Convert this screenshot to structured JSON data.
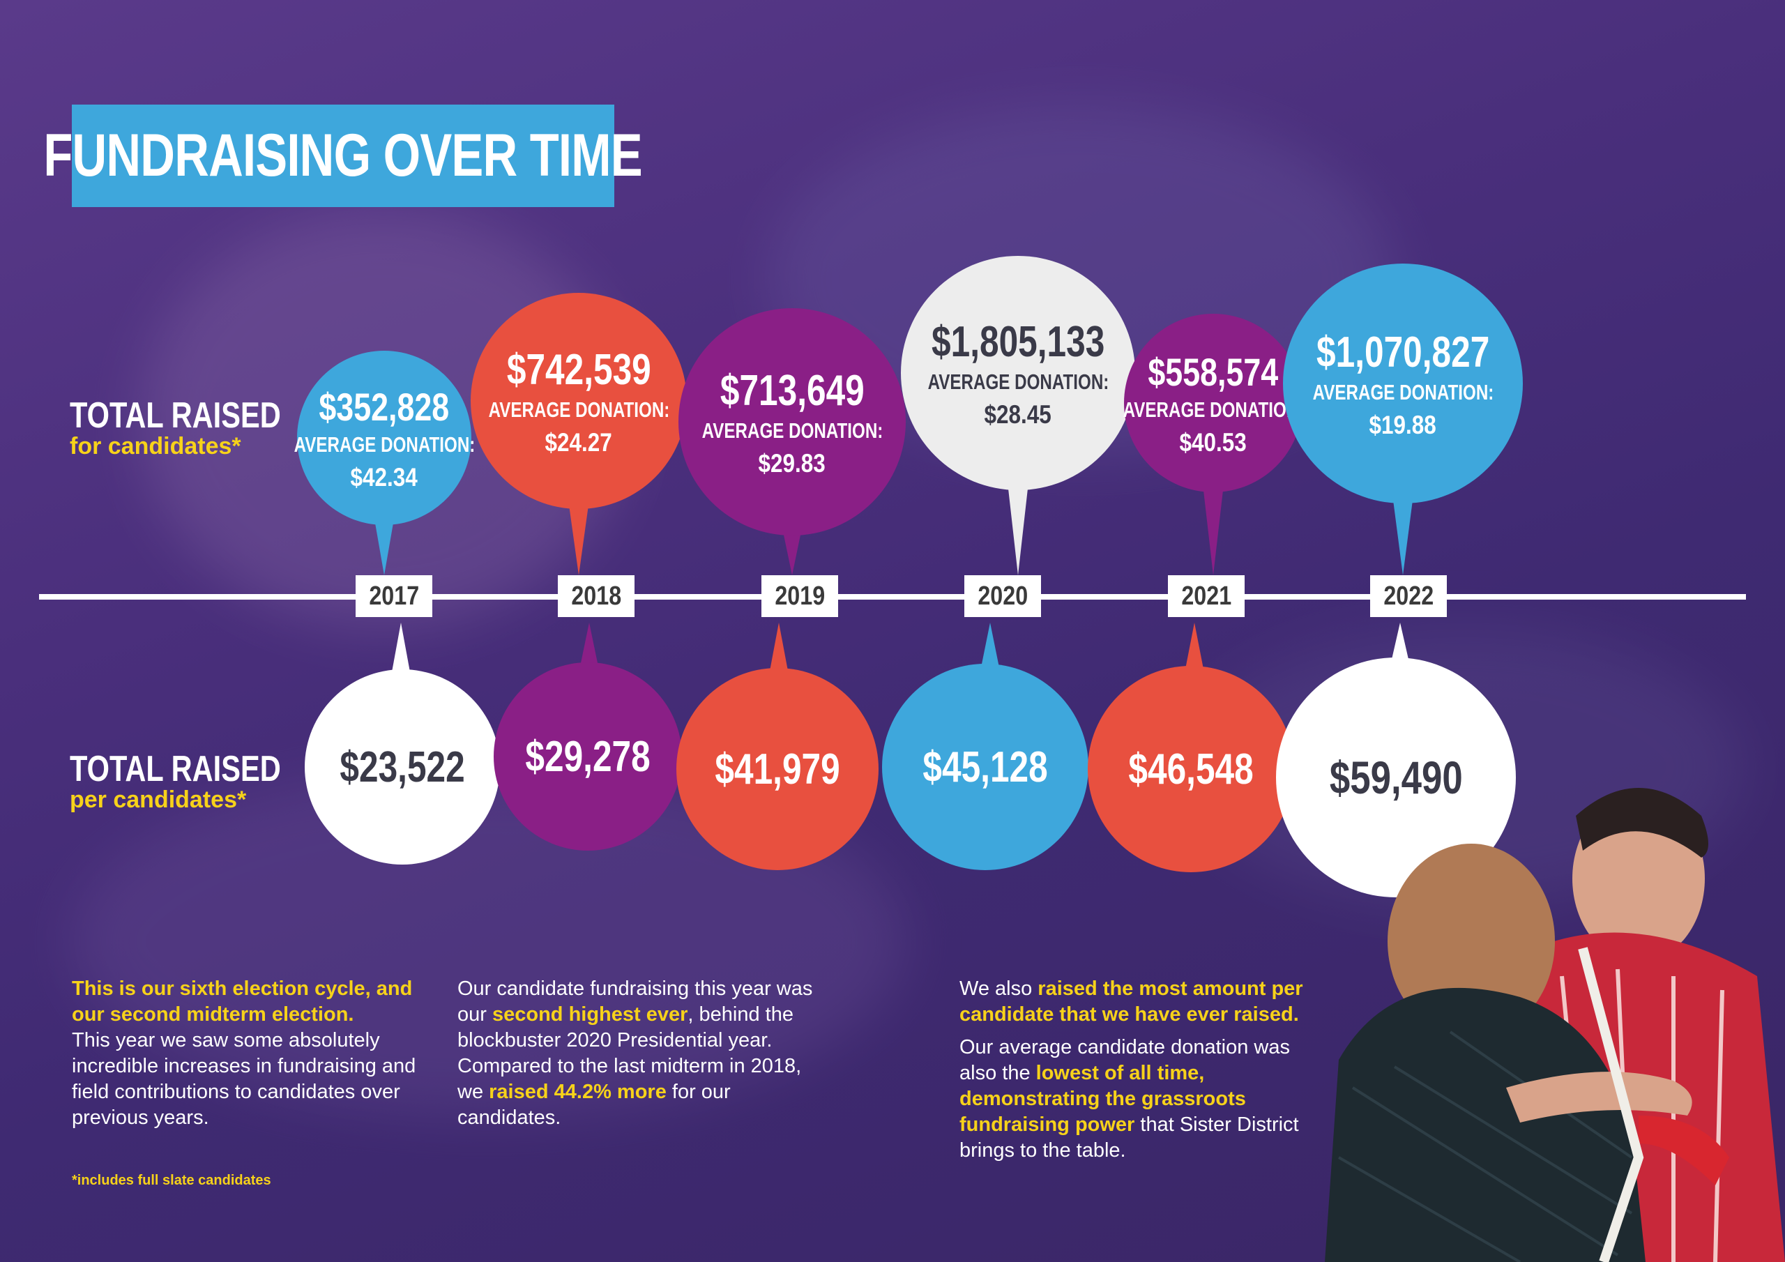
{
  "title": "FUNDRAISING OVER TIME",
  "labels": {
    "top_l1": "TOTAL RAISED",
    "top_l2": "for candidates*",
    "bottom_l1": "TOTAL RAISED",
    "bottom_l2": "per candidates*",
    "avg_label": "AVERAGE DONATION:"
  },
  "colors": {
    "blue": "#3ea7dc",
    "coral": "#e8503f",
    "purple": "#8a1f86",
    "white": "#ffffff",
    "light": "#ededed",
    "yellow": "#f7d21a",
    "dark_text": "#3a3a48"
  },
  "chart_data": {
    "type": "table",
    "title": "FUNDRAISING OVER TIME",
    "categories": [
      "2017",
      "2018",
      "2019",
      "2020",
      "2021",
      "2022"
    ],
    "series": [
      {
        "name": "TOTAL RAISED for candidates*",
        "values": [
          352828,
          742539,
          713649,
          1805133,
          558574,
          1070827
        ],
        "display": [
          "$352,828",
          "$742,539",
          "$713,649",
          "$1,805,133",
          "$558,574",
          "$1,070,827"
        ]
      },
      {
        "name": "AVERAGE DONATION:",
        "values": [
          42.34,
          24.27,
          29.83,
          28.45,
          40.53,
          19.88
        ],
        "display": [
          "$42.34",
          "$24.27",
          "$29.83",
          "$28.45",
          "$40.53",
          "$19.88"
        ]
      },
      {
        "name": "TOTAL RAISED per candidates*",
        "values": [
          23522,
          29278,
          41979,
          45128,
          46548,
          59490
        ],
        "display": [
          "$23,522",
          "$29,278",
          "$41,979",
          "$45,128",
          "$46,548",
          "$59,490"
        ]
      }
    ],
    "top_colors": [
      "blue",
      "coral",
      "purple",
      "light",
      "purple",
      "blue"
    ],
    "bottom_colors": [
      "white",
      "purple",
      "coral",
      "blue",
      "coral",
      "white"
    ]
  },
  "paragraphs": {
    "p1_hl": "This is our sixth election cycle, and our second midterm election.",
    "p1_rest": "This year we saw some absolutely incredible increases in fundraising and field contributions to candidates over previous years.",
    "p2_a": "Our candidate fundraising this year was our ",
    "p2_hl1": "second highest ever",
    "p2_b": ", behind the blockbuster 2020 Presidential year. Compared to the last midterm in 2018, we ",
    "p2_hl2": "raised 44.2% more",
    "p2_c": " for our candidates.",
    "p3_a": "We also ",
    "p3_hl1": "raised the most amount per candidate that we have ever raised.",
    "p3_b": "Our average candidate donation was also the ",
    "p3_hl2": "lowest of all time, demonstrating the grassroots fundraising power",
    "p3_c": " that Sister District brings to the table."
  },
  "footnote": "*includes full slate candidates"
}
